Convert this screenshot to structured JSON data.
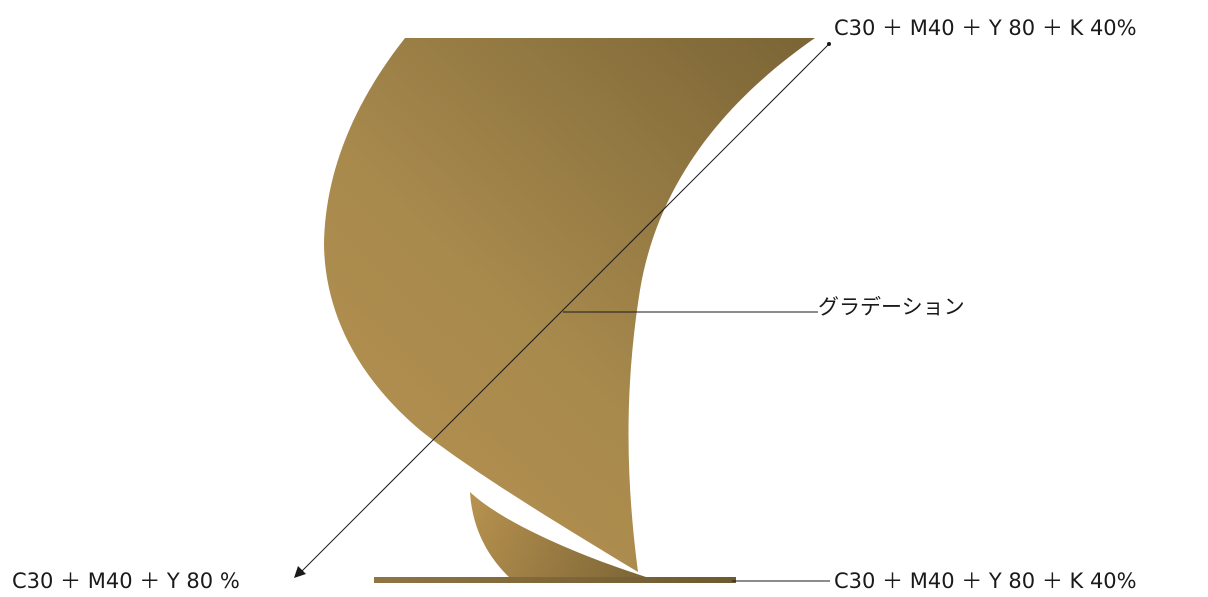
{
  "labels": {
    "top_right": "C30 ＋ M40 ＋ Y 80 ＋ K 40%",
    "gradation": "グラデーション",
    "bottom_left": "C30 ＋ M40 ＋ Y 80 %",
    "bottom_right": "C30 ＋ M40 ＋ Y 80 ＋ K 40%"
  },
  "colors": {
    "gradient_light": "#b8924f",
    "gradient_dark": "#7a6435",
    "base_dark": "#7a6435",
    "base_light": "#8f7444",
    "line": "#1a1a1a",
    "background": "#ffffff"
  }
}
